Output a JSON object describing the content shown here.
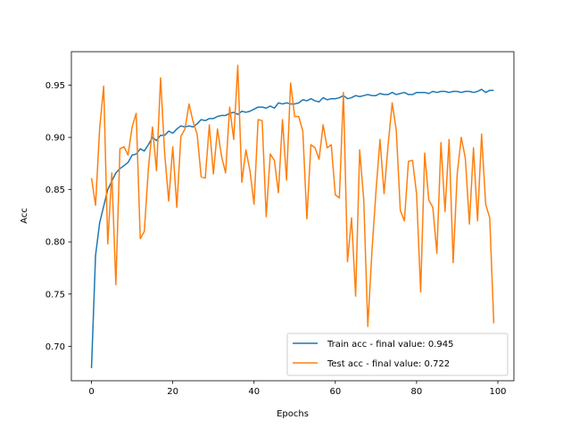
{
  "chart_data": {
    "type": "line",
    "title": "",
    "xlabel": "Epochs",
    "ylabel": "Acc",
    "xlim": [
      -4.95,
      103.95
    ],
    "ylim": [
      0.667,
      0.982
    ],
    "xticks": [
      0,
      20,
      40,
      60,
      80,
      100
    ],
    "xtick_labels": [
      "0",
      "20",
      "40",
      "60",
      "80",
      "100"
    ],
    "yticks": [
      0.7,
      0.75,
      0.8,
      0.85,
      0.9,
      0.95
    ],
    "ytick_labels": [
      "0.70",
      "0.75",
      "0.80",
      "0.85",
      "0.90",
      "0.95"
    ],
    "grid": false,
    "legend_position": "lower-right",
    "series": [
      {
        "name": "Train acc - final value: 0.945",
        "color": "#1f77b4",
        "values": [
          0.679,
          0.787,
          0.818,
          0.834,
          0.85,
          0.858,
          0.866,
          0.87,
          0.873,
          0.876,
          0.883,
          0.884,
          0.889,
          0.887,
          0.893,
          0.9,
          0.897,
          0.902,
          0.902,
          0.906,
          0.904,
          0.908,
          0.911,
          0.91,
          0.911,
          0.91,
          0.913,
          0.917,
          0.916,
          0.918,
          0.918,
          0.92,
          0.921,
          0.921,
          0.923,
          0.924,
          0.922,
          0.925,
          0.924,
          0.925,
          0.927,
          0.929,
          0.929,
          0.928,
          0.93,
          0.928,
          0.933,
          0.932,
          0.933,
          0.932,
          0.932,
          0.933,
          0.936,
          0.935,
          0.937,
          0.935,
          0.934,
          0.938,
          0.936,
          0.937,
          0.937,
          0.938,
          0.94,
          0.937,
          0.938,
          0.94,
          0.939,
          0.94,
          0.941,
          0.94,
          0.94,
          0.942,
          0.941,
          0.941,
          0.943,
          0.941,
          0.942,
          0.943,
          0.941,
          0.941,
          0.943,
          0.943,
          0.943,
          0.942,
          0.944,
          0.943,
          0.944,
          0.944,
          0.943,
          0.944,
          0.944,
          0.943,
          0.944,
          0.944,
          0.943,
          0.944,
          0.946,
          0.943,
          0.945,
          0.945
        ]
      },
      {
        "name": "Test acc - final value: 0.722",
        "color": "#ff7f0e",
        "values": [
          0.861,
          0.835,
          0.908,
          0.949,
          0.798,
          0.866,
          0.759,
          0.889,
          0.891,
          0.883,
          0.91,
          0.923,
          0.803,
          0.81,
          0.87,
          0.91,
          0.868,
          0.957,
          0.885,
          0.839,
          0.891,
          0.833,
          0.901,
          0.908,
          0.932,
          0.915,
          0.903,
          0.862,
          0.861,
          0.912,
          0.865,
          0.908,
          0.882,
          0.866,
          0.929,
          0.898,
          0.969,
          0.857,
          0.888,
          0.868,
          0.836,
          0.917,
          0.916,
          0.824,
          0.884,
          0.878,
          0.847,
          0.917,
          0.859,
          0.952,
          0.92,
          0.92,
          0.906,
          0.822,
          0.893,
          0.89,
          0.879,
          0.912,
          0.89,
          0.893,
          0.845,
          0.842,
          0.943,
          0.781,
          0.823,
          0.748,
          0.888,
          0.84,
          0.719,
          0.79,
          0.848,
          0.898,
          0.846,
          0.893,
          0.933,
          0.907,
          0.83,
          0.82,
          0.877,
          0.878,
          0.846,
          0.752,
          0.885,
          0.84,
          0.833,
          0.789,
          0.895,
          0.829,
          0.898,
          0.78,
          0.865,
          0.9,
          0.88,
          0.817,
          0.89,
          0.82,
          0.903,
          0.836,
          0.823,
          0.722
        ]
      }
    ]
  }
}
